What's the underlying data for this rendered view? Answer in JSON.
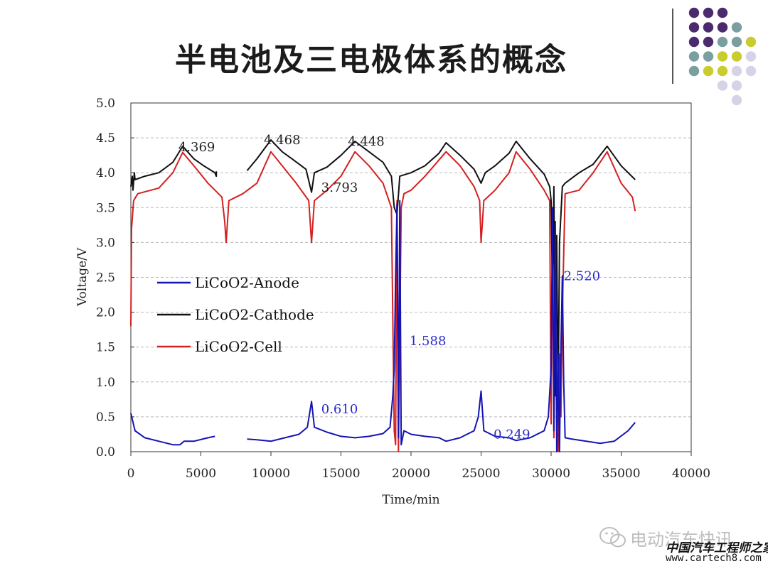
{
  "slide": {
    "title": "半电池及三电极体系的概念"
  },
  "decor": {
    "dot_colors": {
      "purple": "#4b2a6e",
      "teal": "#7a9fa0",
      "yellow": "#c9cc2e",
      "lavender": "#d6d3e8"
    }
  },
  "watermark": {
    "wechat_name": "电动汽车快讯",
    "site_name": "中国汽车工程师之家",
    "site_url": "www.cartech8.com"
  },
  "chart_data": {
    "type": "line",
    "xlabel": "Time/min",
    "ylabel": "Voltage/V",
    "xlim": [
      0,
      40000
    ],
    "ylim": [
      0.0,
      5.0
    ],
    "xticks": [
      "0",
      "5000",
      "10000",
      "15000",
      "20000",
      "25000",
      "30000",
      "35000",
      "40000"
    ],
    "yticks": [
      "0.0",
      "0.5",
      "1.0",
      "1.5",
      "2.0",
      "2.5",
      "3.0",
      "3.5",
      "4.0",
      "4.5",
      "5.0"
    ],
    "grid": "horizontal dashed",
    "legend_position": "left-middle",
    "annotations": [
      {
        "text": "4.369",
        "x": 4700,
        "y": 4.37,
        "color": "#222222"
      },
      {
        "text": "4.468",
        "x": 10800,
        "y": 4.47,
        "color": "#222222"
      },
      {
        "text": "4.448",
        "x": 16800,
        "y": 4.45,
        "color": "#222222"
      },
      {
        "text": "3.793",
        "x": 14900,
        "y": 3.79,
        "color": "#222222"
      },
      {
        "text": "0.610",
        "x": 14900,
        "y": 0.61,
        "color": "#2b2bc8"
      },
      {
        "text": "1.588",
        "x": 21200,
        "y": 1.59,
        "color": "#2b2bc8"
      },
      {
        "text": "0.249",
        "x": 27200,
        "y": 0.25,
        "color": "#2b2bc8"
      },
      {
        "text": "2.520",
        "x": 32200,
        "y": 2.52,
        "color": "#2b2bc8"
      }
    ],
    "series": [
      {
        "name": "LiCoO2-Anode",
        "color": "#1414b4",
        "segments": [
          [
            [
              0,
              0.55
            ],
            [
              300,
              0.3
            ],
            [
              1000,
              0.2
            ],
            [
              2000,
              0.15
            ],
            [
              3000,
              0.1
            ],
            [
              3500,
              0.1
            ],
            [
              3800,
              0.15
            ],
            [
              4500,
              0.15
            ],
            [
              5500,
              0.2
            ],
            [
              6000,
              0.22
            ]
          ],
          [
            [
              8300,
              0.18
            ],
            [
              9000,
              0.17
            ],
            [
              10000,
              0.15
            ],
            [
              11000,
              0.2
            ],
            [
              12000,
              0.25
            ],
            [
              12600,
              0.35
            ],
            [
              12900,
              0.72
            ],
            [
              13100,
              0.35
            ],
            [
              14000,
              0.28
            ],
            [
              15000,
              0.22
            ],
            [
              16000,
              0.2
            ],
            [
              17000,
              0.22
            ],
            [
              18000,
              0.26
            ],
            [
              18500,
              0.35
            ],
            [
              18700,
              0.8
            ],
            [
              18800,
              1.2
            ],
            [
              18900,
              2.5
            ],
            [
              19000,
              3.55
            ],
            [
              19100,
              0.2
            ],
            [
              19200,
              3.6
            ],
            [
              19300,
              0.1
            ],
            [
              19500,
              0.3
            ],
            [
              20000,
              0.25
            ],
            [
              21000,
              0.22
            ],
            [
              22000,
              0.2
            ],
            [
              22500,
              0.15
            ],
            [
              23500,
              0.2
            ],
            [
              24500,
              0.3
            ],
            [
              24800,
              0.5
            ],
            [
              25000,
              0.87
            ],
            [
              25200,
              0.3
            ],
            [
              26000,
              0.22
            ],
            [
              27000,
              0.2
            ],
            [
              27500,
              0.16
            ],
            [
              28500,
              0.2
            ],
            [
              29500,
              0.3
            ],
            [
              29800,
              0.5
            ],
            [
              30000,
              1.2
            ],
            [
              30100,
              3.5
            ],
            [
              30200,
              0.3
            ],
            [
              30300,
              3.3
            ],
            [
              30400,
              0.0
            ],
            [
              30500,
              1.4
            ],
            [
              30600,
              0.0
            ],
            [
              30700,
              1.5
            ],
            [
              30800,
              2.52
            ],
            [
              30900,
              1.0
            ],
            [
              31000,
              0.2
            ],
            [
              31500,
              0.18
            ],
            [
              32500,
              0.15
            ],
            [
              33500,
              0.12
            ],
            [
              34500,
              0.15
            ],
            [
              35500,
              0.3
            ],
            [
              36000,
              0.42
            ]
          ]
        ]
      },
      {
        "name": "LiCoO2-Cathode",
        "color": "#111111",
        "segments": [
          [
            [
              0,
              3.8
            ],
            [
              100,
              3.95
            ],
            [
              150,
              3.75
            ],
            [
              250,
              4.0
            ],
            [
              300,
              3.9
            ],
            [
              1000,
              3.95
            ],
            [
              2000,
              4.0
            ],
            [
              3000,
              4.15
            ],
            [
              3700,
              4.38
            ],
            [
              4500,
              4.2
            ],
            [
              5200,
              4.1
            ],
            [
              6000,
              4.0
            ],
            [
              6100,
              3.95
            ],
            [
              6100,
              4.02
            ]
          ],
          [
            [
              8300,
              4.03
            ],
            [
              9000,
              4.2
            ],
            [
              10000,
              4.47
            ],
            [
              10800,
              4.3
            ],
            [
              11500,
              4.2
            ],
            [
              12500,
              4.05
            ],
            [
              12900,
              3.72
            ],
            [
              13100,
              4.0
            ],
            [
              14000,
              4.08
            ],
            [
              15000,
              4.25
            ],
            [
              16000,
              4.45
            ],
            [
              17000,
              4.3
            ],
            [
              18000,
              4.15
            ],
            [
              18600,
              3.95
            ],
            [
              18800,
              3.5
            ],
            [
              19000,
              3.4
            ],
            [
              19200,
              3.95
            ],
            [
              20000,
              4.0
            ],
            [
              21000,
              4.1
            ],
            [
              22000,
              4.28
            ],
            [
              22500,
              4.43
            ],
            [
              23500,
              4.25
            ],
            [
              24500,
              4.05
            ],
            [
              25000,
              3.85
            ],
            [
              25300,
              4.0
            ],
            [
              26000,
              4.1
            ],
            [
              27000,
              4.28
            ],
            [
              27500,
              4.45
            ],
            [
              28500,
              4.2
            ],
            [
              29500,
              3.98
            ],
            [
              29900,
              3.8
            ],
            [
              30000,
              3.6
            ],
            [
              30100,
              2.2
            ],
            [
              30200,
              3.8
            ],
            [
              30300,
              0.8
            ],
            [
              30400,
              3.1
            ],
            [
              30500,
              0.6
            ],
            [
              30600,
              3.0
            ],
            [
              30800,
              3.8
            ],
            [
              31000,
              3.85
            ],
            [
              32000,
              4.0
            ],
            [
              33000,
              4.12
            ],
            [
              34000,
              4.38
            ],
            [
              35000,
              4.1
            ],
            [
              36000,
              3.9
            ]
          ]
        ]
      },
      {
        "name": "LiCoO2-Cell",
        "color": "#d42020",
        "segments": [
          [
            [
              0,
              1.8
            ],
            [
              50,
              3.2
            ],
            [
              200,
              3.6
            ],
            [
              500,
              3.7
            ],
            [
              2000,
              3.78
            ],
            [
              3000,
              4.0
            ],
            [
              3700,
              4.29
            ],
            [
              4500,
              4.1
            ],
            [
              5500,
              3.85
            ],
            [
              6500,
              3.65
            ],
            [
              6700,
              3.3
            ],
            [
              6800,
              3.0
            ],
            [
              7000,
              3.6
            ],
            [
              8000,
              3.7
            ],
            [
              9000,
              3.85
            ],
            [
              10000,
              4.3
            ],
            [
              10800,
              4.1
            ],
            [
              11800,
              3.85
            ],
            [
              12700,
              3.6
            ],
            [
              12900,
              3.0
            ],
            [
              13100,
              3.6
            ],
            [
              14000,
              3.75
            ],
            [
              15000,
              3.95
            ],
            [
              16000,
              4.3
            ],
            [
              17000,
              4.1
            ],
            [
              18000,
              3.85
            ],
            [
              18600,
              3.5
            ],
            [
              18800,
              0.3
            ],
            [
              18900,
              0.1
            ],
            [
              19000,
              3.6
            ],
            [
              19100,
              0.0
            ],
            [
              19300,
              3.5
            ],
            [
              19500,
              3.7
            ],
            [
              20000,
              3.75
            ],
            [
              21000,
              3.95
            ],
            [
              22500,
              4.3
            ],
            [
              23500,
              4.1
            ],
            [
              24500,
              3.8
            ],
            [
              24900,
              3.6
            ],
            [
              25000,
              3.0
            ],
            [
              25200,
              3.6
            ],
            [
              26000,
              3.75
            ],
            [
              27000,
              4.0
            ],
            [
              27500,
              4.3
            ],
            [
              28500,
              4.05
            ],
            [
              29500,
              3.75
            ],
            [
              29900,
              3.6
            ],
            [
              30000,
              0.4
            ],
            [
              30100,
              3.3
            ],
            [
              30200,
              0.2
            ],
            [
              30300,
              2.5
            ],
            [
              30400,
              0.3
            ],
            [
              30500,
              0.0
            ],
            [
              30600,
              1.4
            ],
            [
              30700,
              0.5
            ],
            [
              30800,
              2.0
            ],
            [
              31000,
              3.7
            ],
            [
              32000,
              3.75
            ],
            [
              33000,
              4.0
            ],
            [
              34000,
              4.3
            ],
            [
              35000,
              3.85
            ],
            [
              35800,
              3.65
            ],
            [
              36000,
              3.45
            ]
          ]
        ]
      }
    ]
  }
}
